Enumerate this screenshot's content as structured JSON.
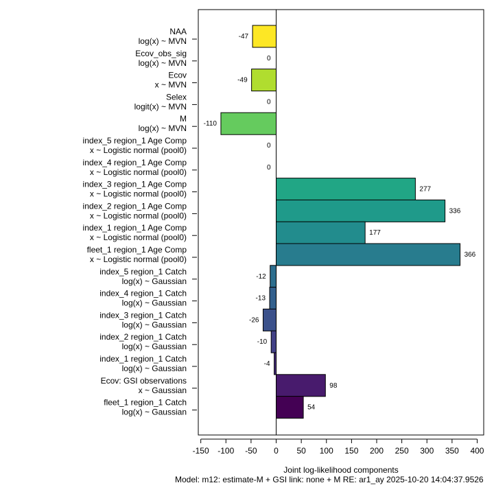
{
  "chart_data": {
    "type": "bar",
    "orientation": "horizontal",
    "xlabel": "Joint log-likelihood components",
    "subtitle": "Model: m12: estimate-M + GSI link: none + M RE: ar1_ay    2025-10-20 14:04:37.9526",
    "xlim": [
      -155,
      413
    ],
    "xticks": [
      -150,
      -100,
      -50,
      0,
      50,
      100,
      150,
      200,
      250,
      300,
      350,
      400
    ],
    "grid": false,
    "bars": [
      {
        "line1": "NAA",
        "line2": "log(x) ~ MVN",
        "value": -47,
        "label": "-47",
        "color": "#FDE725"
      },
      {
        "line1": "Ecov_obs_sig",
        "line2": "log(x) ~ MVN",
        "value": 0,
        "label": "0",
        "color": "#D2E21B"
      },
      {
        "line1": "Ecov",
        "line2": "x ~ MVN",
        "value": -49,
        "label": "-49",
        "color": "#B0DD2F"
      },
      {
        "line1": "Selex",
        "line2": "logit(x) ~ MVN",
        "value": 0,
        "label": "0",
        "color": "#89D548"
      },
      {
        "line1": "M",
        "line2": "log(x) ~ MVN",
        "value": -110,
        "label": "-110",
        "color": "#65CB5E"
      },
      {
        "line1": "index_5 region_1 Age Comp",
        "line2": "x ~ Logistic normal (pool0)",
        "value": 0,
        "label": "0",
        "color": "#46C06F"
      },
      {
        "line1": "index_4 region_1 Age Comp",
        "line2": "x ~ Logistic normal (pool0)",
        "value": 0,
        "label": "0",
        "color": "#2EB37C"
      },
      {
        "line1": "index_3 region_1 Age Comp",
        "line2": "x ~ Logistic normal (pool0)",
        "value": 277,
        "label": "277",
        "color": "#21A685"
      },
      {
        "line1": "index_2 region_1 Age Comp",
        "line2": "x ~ Logistic normal (pool0)",
        "value": 336,
        "label": "336",
        "color": "#1F9A8A"
      },
      {
        "line1": "index_1 region_1 Age Comp",
        "line2": "x ~ Logistic normal (pool0)",
        "value": 177,
        "label": "177",
        "color": "#228C8D"
      },
      {
        "line1": "fleet_1 region_1 Age Comp",
        "line2": "x ~ Logistic normal (pool0)",
        "value": 366,
        "label": "366",
        "color": "#287C8E"
      },
      {
        "line1": "index_5 region_1 Catch",
        "line2": "log(x) ~ Gaussian",
        "value": -12,
        "label": "-12",
        "color": "#2D6E8E"
      },
      {
        "line1": "index_4 region_1 Catch",
        "line2": "log(x) ~ Gaussian",
        "value": -13,
        "label": "-13",
        "color": "#33608D"
      },
      {
        "line1": "index_3 region_1 Catch",
        "line2": "log(x) ~ Gaussian",
        "value": -26,
        "label": "-26",
        "color": "#3B518B"
      },
      {
        "line1": "index_2 region_1 Catch",
        "line2": "log(x) ~ Gaussian",
        "value": -10,
        "label": "-10",
        "color": "#424186"
      },
      {
        "line1": "index_1 region_1 Catch",
        "line2": "log(x) ~ Gaussian",
        "value": -4,
        "label": "-4",
        "color": "#472F7D"
      },
      {
        "line1": "Ecov: GSI observations",
        "line2": "x ~ Gaussian",
        "value": 98,
        "label": "98",
        "color": "#481B6D"
      },
      {
        "line1": "fleet_1 region_1 Catch",
        "line2": "log(x) ~ Gaussian",
        "value": 54,
        "label": "54",
        "color": "#440154"
      }
    ]
  }
}
